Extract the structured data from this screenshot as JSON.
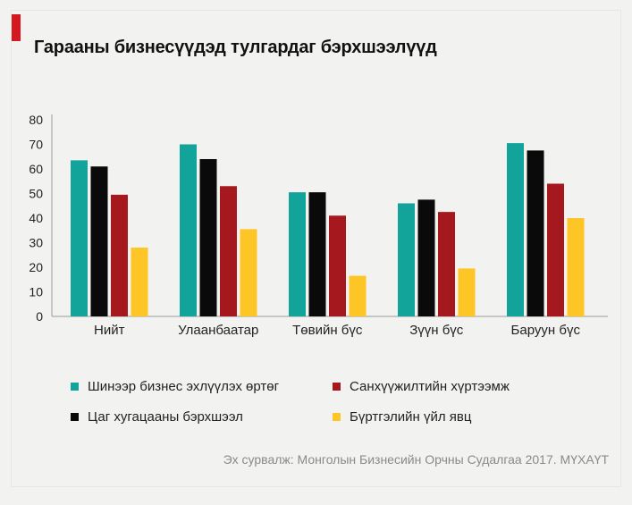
{
  "title": "Гарааны бизнесүүдэд тулгардаг бэрхшээлүүд",
  "source": "Эх сурвалж: Монголын Бизнесийн Орчны Судалгаа 2017. МҮХАҮТ",
  "chart_data": {
    "type": "bar",
    "categories": [
      "Нийт",
      "Улаанбаатар",
      "Төвийн бүс",
      "Зүүн бүс",
      "Баруун бүс"
    ],
    "series": [
      {
        "name": "Шинээр бизнес эхлүүлэх өртөг",
        "color": "#12a39a",
        "values": [
          63.5,
          70,
          50.5,
          46,
          70.5
        ]
      },
      {
        "name": "Цаг хугацааны бэрхшээл",
        "color": "#0a0a0a",
        "values": [
          61,
          64,
          50.5,
          47.5,
          67.5
        ]
      },
      {
        "name": "Санхүүжилтийн хүртээмж",
        "color": "#a5191e",
        "values": [
          49.5,
          53,
          41,
          42.5,
          54
        ]
      },
      {
        "name": "Бүртгэлийн үйл явц",
        "color": "#fdc526",
        "values": [
          28,
          35.5,
          16.5,
          19.5,
          40
        ]
      }
    ],
    "yticks": [
      "0",
      "10",
      "20",
      "30",
      "40",
      "50",
      "60",
      "70",
      "80"
    ],
    "ylim": [
      0,
      80
    ],
    "grid": false,
    "legend": "bottom"
  }
}
